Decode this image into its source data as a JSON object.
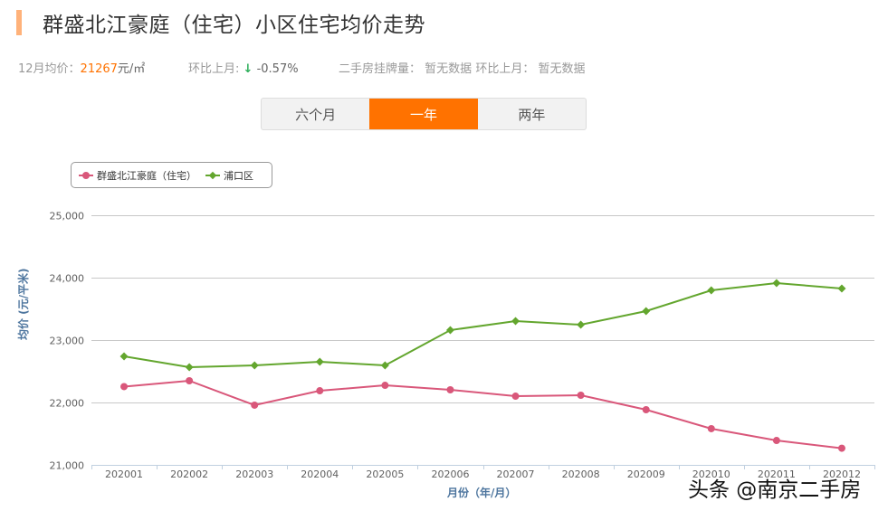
{
  "header": {
    "title": "群盛北江豪庭（住宅）小区住宅均价走势",
    "accent_color": "#ffb27a"
  },
  "stats": {
    "price_label": "12月均价：",
    "price_value": "21267",
    "price_unit": "元/㎡",
    "mom_label": "环比上月:",
    "mom_arrow": "↓",
    "mom_value": "-0.57%",
    "listing_label": "二手房挂牌量：",
    "listing_value": "暂无数据",
    "listing_mom_label": "环比上月：",
    "listing_mom_value": "暂无数据"
  },
  "tabs": [
    {
      "label": "六个月",
      "active": false
    },
    {
      "label": "一年",
      "active": true
    },
    {
      "label": "两年",
      "active": false
    }
  ],
  "watermark": "头条 @南京二手房",
  "chart_data": {
    "type": "line",
    "title": "",
    "xlabel": "月份（年/月）",
    "ylabel": "均价 (元/平米)",
    "categories": [
      "202001",
      "202002",
      "202003",
      "202004",
      "202005",
      "202006",
      "202007",
      "202008",
      "202009",
      "202010",
      "202011",
      "202012"
    ],
    "yticks": [
      "21,000",
      "22,000",
      "23,000",
      "24,000",
      "25,000"
    ],
    "ylim": [
      21000,
      25000
    ],
    "grid": true,
    "legend_position": "top-left",
    "series": [
      {
        "name": "群盛北江豪庭（住宅）",
        "color": "#d9577a",
        "marker": "circle",
        "values": [
          22254,
          22348,
          21957,
          22188,
          22275,
          22203,
          22101,
          22116,
          21884,
          21580,
          21391,
          21267
        ]
      },
      {
        "name": "浦口区",
        "color": "#63a62e",
        "marker": "diamond",
        "values": [
          22739,
          22565,
          22594,
          22652,
          22594,
          23159,
          23304,
          23246,
          23464,
          23797,
          23913,
          23826
        ]
      }
    ]
  }
}
